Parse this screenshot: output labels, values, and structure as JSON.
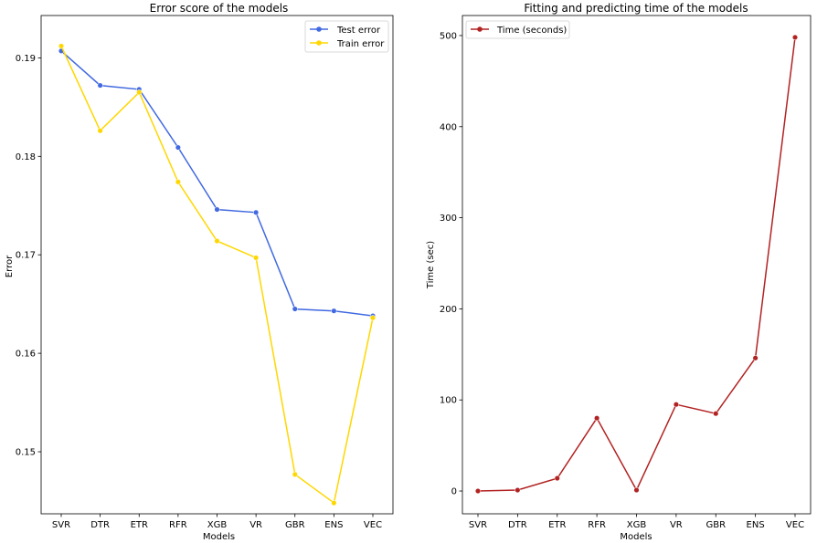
{
  "chart_data": [
    {
      "type": "line",
      "title": "Error score of the models",
      "xlabel": "Models",
      "ylabel": "Error",
      "categories": [
        "SVR",
        "DTR",
        "ETR",
        "RFR",
        "XGB",
        "VR",
        "GBR",
        "ENS",
        "VEC"
      ],
      "ylim": [
        0.1437,
        0.1943
      ],
      "yticks": [
        "0.15",
        "0.16",
        "0.17",
        "0.18",
        "0.19"
      ],
      "grid": false,
      "legend_position": "top-right",
      "series": [
        {
          "name": "Test error",
          "color": "#4169e1",
          "values": [
            0.1907,
            0.1872,
            0.1868,
            0.1809,
            0.1746,
            0.1743,
            0.1645,
            0.1643,
            0.1638
          ]
        },
        {
          "name": "Train error",
          "color": "#ffd700",
          "values": [
            0.1912,
            0.1826,
            0.1865,
            0.1774,
            0.1714,
            0.1697,
            0.1477,
            0.1448,
            0.1636
          ]
        }
      ]
    },
    {
      "type": "line",
      "title": "Fitting and predicting time of the models",
      "xlabel": "Models",
      "ylabel": "Time (sec)",
      "categories": [
        "SVR",
        "DTR",
        "ETR",
        "RFR",
        "XGB",
        "VR",
        "GBR",
        "ENS",
        "VEC"
      ],
      "ylim": [
        -25,
        522
      ],
      "yticks": [
        "0",
        "100",
        "200",
        "300",
        "400",
        "500"
      ],
      "grid": false,
      "legend_position": "top-left",
      "series": [
        {
          "name": "Time (seconds)",
          "color": "#b22222",
          "values": [
            0,
            1,
            14,
            80,
            1,
            95,
            85,
            146,
            498
          ]
        }
      ]
    }
  ]
}
